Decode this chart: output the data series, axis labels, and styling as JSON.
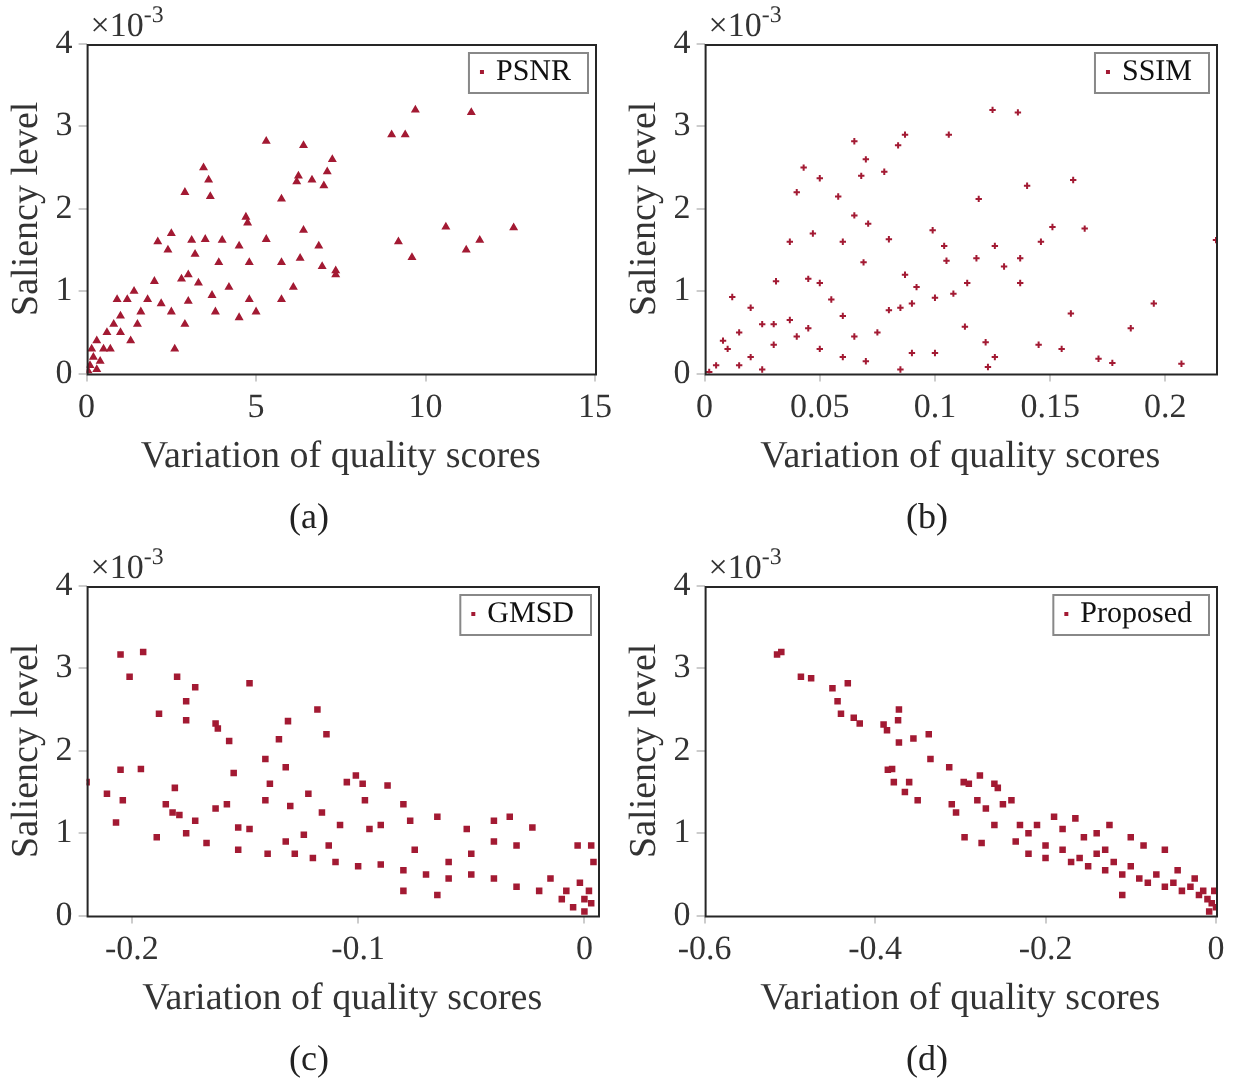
{
  "chart_data": [
    {
      "type": "scatter",
      "xlabel": "Variation of quality scores",
      "ylabel": "Saliency level",
      "annotations": [
        "×10$^{-3}$",
        "(a)"
      ],
      "xlim": [
        0,
        15
      ],
      "xticks": [
        0,
        5,
        10,
        15
      ],
      "ylim": [
        0,
        4
      ],
      "yticks": [
        0,
        1,
        2,
        3,
        4
      ],
      "legend": "top right",
      "marker": "triangle",
      "series": [
        {
          "name": "PSNR",
          "color": "#a31a33",
          "x": [
            9.7,
            11.35,
            9.0,
            9.4,
            5.3,
            6.4,
            7.25,
            3.45,
            3.6,
            6.25,
            6.2,
            6.65,
            7.1,
            7.0,
            2.9,
            3.65,
            5.75,
            4.7,
            4.75,
            10.6,
            12.6,
            6.4,
            2.5,
            9.2,
            11.6,
            11.2,
            9.6,
            5.3,
            2.1,
            3.1,
            3.5,
            4.0,
            4.5,
            6.85,
            3.2,
            5.75,
            6.3,
            6.95,
            7.35,
            7.35,
            4.8,
            3.9,
            2.0,
            2.8,
            3.0,
            3.3,
            6.1,
            4.2,
            4.8,
            5.75,
            5.0,
            4.5,
            3.8,
            3.0,
            2.2,
            2.5,
            2.6,
            1.8,
            1.5,
            1.2,
            1.0,
            0.8,
            0.6,
            0.5,
            0.3,
            0.2,
            0.1,
            0.05,
            0.4,
            0.7,
            1.0,
            1.3,
            0.9,
            1.4,
            0.3,
            0.15,
            2.4,
            3.7,
            2.9,
            1.6
          ],
          "values": [
            3.2,
            3.17,
            2.9,
            2.9,
            2.82,
            2.77,
            2.6,
            2.5,
            2.35,
            2.4,
            2.33,
            2.35,
            2.45,
            2.28,
            2.2,
            2.15,
            2.12,
            1.9,
            1.83,
            1.78,
            1.77,
            1.74,
            1.7,
            1.6,
            1.62,
            1.5,
            1.41,
            1.63,
            1.6,
            1.62,
            1.63,
            1.62,
            1.55,
            1.55,
            1.45,
            1.35,
            1.4,
            1.3,
            1.25,
            1.2,
            1.35,
            1.35,
            1.12,
            1.15,
            1.2,
            1.1,
            1.05,
            1.05,
            0.9,
            0.9,
            0.75,
            0.68,
            0.75,
            0.88,
            0.85,
            0.75,
            0.3,
            0.9,
            0.6,
            0.9,
            0.7,
            0.6,
            0.5,
            0.3,
            0.4,
            0.2,
            0.1,
            0.03,
            0.15,
            0.3,
            0.5,
            0.4,
            0.9,
            1.0,
            0.05,
            0.3,
            1.5,
            0.95,
            0.6,
            0.75
          ]
        }
      ]
    },
    {
      "type": "scatter",
      "xlabel": "Variation of quality scores",
      "ylabel": "Saliency level",
      "annotations": [
        "×10$^{-3}$",
        "(b)"
      ],
      "xlim": [
        0,
        0.222
      ],
      "xticks": [
        0,
        0.05,
        0.1,
        0.15,
        0.2
      ],
      "ylim": [
        0,
        4
      ],
      "yticks": [
        0,
        1,
        2,
        3,
        4
      ],
      "legend": "top right",
      "marker": "cross",
      "series": [
        {
          "name": "SSIM",
          "color": "#a31a33",
          "x": [
            0.125,
            0.136,
            0.065,
            0.087,
            0.106,
            0.084,
            0.07,
            0.043,
            0.05,
            0.068,
            0.078,
            0.04,
            0.058,
            0.14,
            0.16,
            0.119,
            0.065,
            0.071,
            0.099,
            0.151,
            0.165,
            0.047,
            0.037,
            0.08,
            0.104,
            0.126,
            0.146,
            0.222,
            0.06,
            0.137,
            0.13,
            0.118,
            0.105,
            0.069,
            0.087,
            0.05,
            0.045,
            0.031,
            0.114,
            0.137,
            0.1,
            0.108,
            0.195,
            0.159,
            0.185,
            0.113,
            0.08,
            0.06,
            0.037,
            0.02,
            0.012,
            0.025,
            0.015,
            0.01,
            0.005,
            0.02,
            0.03,
            0.04,
            0.05,
            0.06,
            0.07,
            0.09,
            0.1,
            0.122,
            0.126,
            0.145,
            0.155,
            0.171,
            0.177,
            0.207,
            0.123,
            0.085,
            0.002,
            0.015,
            0.025,
            0.008,
            0.03,
            0.045,
            0.065,
            0.075,
            0.09,
            0.092,
            0.085,
            0.055
          ],
          "values": [
            3.2,
            3.17,
            2.82,
            2.9,
            2.9,
            2.77,
            2.6,
            2.5,
            2.37,
            2.4,
            2.45,
            2.2,
            2.15,
            2.28,
            2.35,
            2.12,
            1.92,
            1.82,
            1.74,
            1.78,
            1.76,
            1.7,
            1.6,
            1.63,
            1.55,
            1.55,
            1.6,
            1.62,
            1.6,
            1.4,
            1.3,
            1.4,
            1.37,
            1.35,
            1.2,
            1.1,
            1.15,
            1.12,
            1.1,
            1.1,
            0.92,
            0.97,
            0.85,
            0.73,
            0.55,
            0.57,
            0.77,
            0.7,
            0.65,
            0.8,
            0.93,
            0.6,
            0.5,
            0.3,
            0.1,
            0.2,
            0.35,
            0.45,
            0.3,
            0.2,
            0.15,
            0.25,
            0.25,
            0.38,
            0.2,
            0.35,
            0.3,
            0.18,
            0.13,
            0.12,
            0.08,
            0.05,
            0.02,
            0.1,
            0.05,
            0.4,
            0.6,
            0.55,
            0.45,
            0.5,
            0.85,
            1.05,
            0.8,
            0.9
          ]
        }
      ]
    },
    {
      "type": "scatter",
      "xlabel": "Variation of quality scores",
      "ylabel": "Saliency level",
      "annotations": [
        "×10$^{-3}$",
        "(c)"
      ],
      "xlim": [
        -0.22,
        0.006
      ],
      "xticks": [
        -0.2,
        -0.1,
        0
      ],
      "ylim": [
        0,
        4
      ],
      "yticks": [
        0,
        1,
        2,
        3,
        4
      ],
      "legend": "top right",
      "marker": "square",
      "series": [
        {
          "name": "GMSD",
          "color": "#a31a33",
          "x": [
            -0.205,
            -0.195,
            -0.201,
            -0.18,
            -0.148,
            -0.172,
            -0.188,
            -0.176,
            -0.176,
            -0.163,
            -0.162,
            -0.157,
            -0.118,
            -0.131,
            -0.114,
            -0.135,
            -0.141,
            -0.22,
            -0.205,
            -0.196,
            -0.211,
            -0.204,
            -0.207,
            -0.181,
            -0.155,
            -0.132,
            -0.139,
            -0.141,
            -0.185,
            -0.182,
            -0.179,
            -0.172,
            -0.163,
            -0.158,
            -0.153,
            -0.148,
            -0.189,
            -0.176,
            -0.167,
            -0.153,
            -0.14,
            -0.13,
            -0.122,
            -0.116,
            -0.105,
            -0.098,
            -0.101,
            -0.087,
            -0.097,
            -0.124,
            -0.113,
            -0.108,
            -0.095,
            -0.09,
            -0.08,
            -0.077,
            -0.065,
            -0.052,
            -0.04,
            -0.033,
            -0.023,
            -0.12,
            -0.11,
            -0.1,
            -0.09,
            -0.08,
            -0.08,
            -0.07,
            -0.065,
            -0.06,
            -0.05,
            -0.05,
            -0.04,
            -0.04,
            -0.03,
            -0.03,
            -0.02,
            -0.015,
            -0.01,
            -0.005,
            0,
            0.002,
            0.003,
            -0.003,
            0.004,
            0,
            -0.002,
            -0.008,
            0.003,
            -0.132,
            -0.128,
            -0.06,
            -0.075
          ],
          "values": [
            3.17,
            3.2,
            2.9,
            2.9,
            2.82,
            2.77,
            2.45,
            2.6,
            2.37,
            2.33,
            2.27,
            2.12,
            2.5,
            2.36,
            2.2,
            2.14,
            1.9,
            1.62,
            1.77,
            1.78,
            1.48,
            1.4,
            1.13,
            1.55,
            1.73,
            1.8,
            1.6,
            1.4,
            1.35,
            1.25,
            1.22,
            1.15,
            1.3,
            1.35,
            1.07,
            1.05,
            0.95,
            1.0,
            0.88,
            0.8,
            0.75,
            1.33,
            1.48,
            1.25,
            1.62,
            1.6,
            1.7,
            1.58,
            1.4,
            0.98,
            0.85,
            1.1,
            1.05,
            1.1,
            1.35,
            1.15,
            1.2,
            1.05,
            1.15,
            1.2,
            1.07,
            0.7,
            0.65,
            0.6,
            0.62,
            0.55,
            0.3,
            0.5,
            0.25,
            0.45,
            0.5,
            0.75,
            0.9,
            0.45,
            0.35,
            0.85,
            0.3,
            0.45,
            0.2,
            0.1,
            0.2,
            0.3,
            0.85,
            0.85,
            0.65,
            0.05,
            0.4,
            0.3,
            0.15,
            0.9,
            0.75,
            0.65,
            0.8
          ]
        }
      ]
    },
    {
      "type": "scatter",
      "xlabel": "Variation of quality scores",
      "ylabel": "Saliency level",
      "annotations": [
        "×10$^{-3}$",
        "(d)"
      ],
      "xlim": [
        -0.6,
        0
      ],
      "xticks": [
        -0.6,
        -0.4,
        -0.2,
        0
      ],
      "ylim": [
        0,
        4
      ],
      "yticks": [
        0,
        1,
        2,
        3,
        4
      ],
      "legend": "top right",
      "marker": "square",
      "series": [
        {
          "name": "Proposed",
          "color": "#a31a33",
          "x": [
            -0.515,
            -0.51,
            -0.487,
            -0.475,
            -0.45,
            -0.432,
            -0.444,
            -0.44,
            -0.425,
            -0.418,
            -0.39,
            -0.386,
            -0.372,
            -0.373,
            -0.372,
            -0.355,
            -0.337,
            -0.335,
            -0.385,
            -0.38,
            -0.378,
            -0.36,
            -0.365,
            -0.35,
            -0.313,
            -0.296,
            -0.277,
            -0.26,
            -0.256,
            -0.29,
            -0.31,
            -0.305,
            -0.28,
            -0.27,
            -0.25,
            -0.24,
            -0.295,
            -0.275,
            -0.26,
            -0.23,
            -0.22,
            -0.21,
            -0.19,
            -0.18,
            -0.165,
            -0.14,
            -0.125,
            -0.1,
            -0.085,
            -0.06,
            -0.235,
            -0.22,
            -0.2,
            -0.18,
            -0.17,
            -0.16,
            -0.15,
            -0.14,
            -0.13,
            -0.12,
            -0.11,
            -0.1,
            -0.09,
            -0.08,
            -0.07,
            -0.06,
            -0.05,
            -0.04,
            -0.03,
            -0.02,
            -0.015,
            -0.01,
            -0.005,
            0,
            -0.002,
            -0.008,
            -0.025,
            -0.045,
            -0.11,
            -0.13,
            -0.155,
            -0.2
          ],
          "values": [
            3.17,
            3.2,
            2.9,
            2.88,
            2.76,
            2.82,
            2.6,
            2.45,
            2.4,
            2.33,
            2.32,
            2.25,
            2.5,
            2.37,
            2.1,
            2.15,
            2.2,
            1.9,
            1.77,
            1.78,
            1.62,
            1.62,
            1.5,
            1.4,
            1.8,
            1.62,
            1.7,
            1.6,
            1.55,
            1.6,
            1.35,
            1.25,
            1.4,
            1.3,
            1.35,
            1.4,
            0.95,
            0.88,
            1.1,
            1.1,
            1.0,
            1.1,
            1.2,
            1.05,
            1.18,
            1.0,
            1.1,
            0.95,
            0.85,
            0.8,
            0.9,
            0.75,
            0.7,
            0.8,
            0.65,
            0.7,
            0.6,
            0.75,
            0.55,
            0.65,
            0.5,
            0.6,
            0.45,
            0.4,
            0.5,
            0.35,
            0.4,
            0.3,
            0.35,
            0.25,
            0.3,
            0.2,
            0.15,
            0.1,
            0.3,
            0.05,
            0.45,
            0.55,
            0.25,
            0.8,
            0.95,
            0.85
          ]
        }
      ]
    }
  ]
}
